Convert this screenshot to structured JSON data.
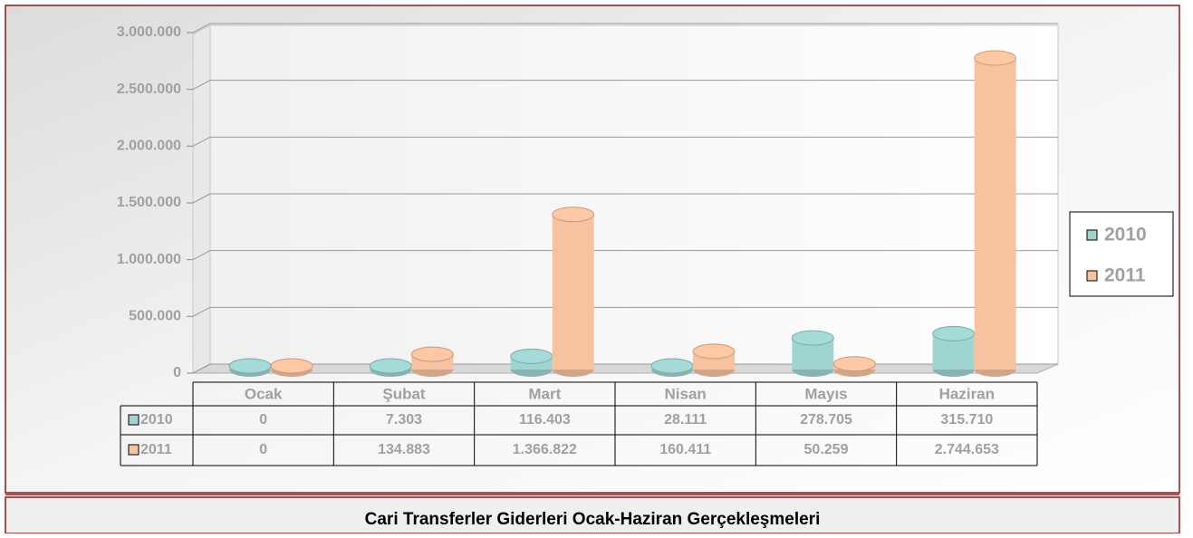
{
  "chart_data": {
    "type": "bar",
    "title": "Cari Transferler Giderleri Ocak-Haziran Gerçekleşmeleri",
    "categories": [
      "Ocak",
      "Şubat",
      "Mart",
      "Nisan",
      "Mayıs",
      "Haziran"
    ],
    "series": [
      {
        "name": "2010",
        "color": "#9fd4d1",
        "values": [
          0,
          7303,
          116403,
          28111,
          278705,
          315710
        ],
        "value_labels": [
          "0",
          "7.303",
          "116.403",
          "28.111",
          "278.705",
          "315.710"
        ]
      },
      {
        "name": "2011",
        "color": "#f7c2a0",
        "values": [
          0,
          134883,
          1366822,
          160411,
          50259,
          2744653
        ],
        "value_labels": [
          "0",
          "134.883",
          "1.366.822",
          "160.411",
          "50.259",
          "2.744.653"
        ]
      }
    ],
    "ylim": [
      0,
      3000000
    ],
    "yticks": [
      0,
      {
        "value": 500000,
        "label": "500.000"
      },
      {
        "value": 1000000,
        "label": "1.000.000"
      },
      {
        "value": 1500000,
        "label": "1.500.000"
      },
      {
        "value": 2000000,
        "label": "2.000.000"
      },
      {
        "value": 2500000,
        "label": "2.500.000"
      },
      {
        "value": 3000000,
        "label": "3.000.000"
      }
    ],
    "grid": true,
    "legend": "right"
  }
}
